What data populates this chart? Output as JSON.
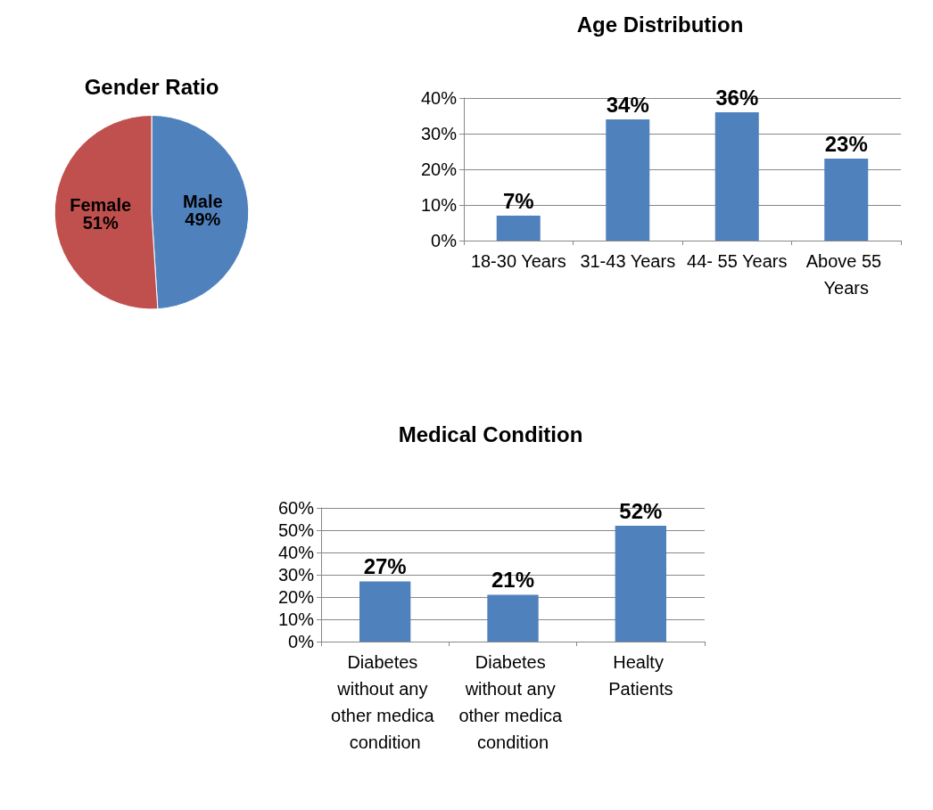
{
  "chart_data": [
    {
      "type": "pie",
      "title": "Gender Ratio",
      "categories": [
        "Male",
        "Female"
      ],
      "values": [
        49,
        51
      ],
      "colors": [
        "#4f81bd",
        "#c0504d"
      ],
      "value_labels": [
        "49%",
        "51%"
      ],
      "legend": false
    },
    {
      "type": "bar",
      "title": "Age Distribution",
      "categories": [
        "18-30 Years",
        "31-43 Years",
        "44- 55 Years",
        "Above 55 Years"
      ],
      "values": [
        7,
        34,
        36,
        23
      ],
      "color": "#4f81bd",
      "value_labels": [
        "7%",
        "34%",
        "36%",
        "23%"
      ],
      "ylim": [
        0,
        40
      ],
      "yticks": [
        {
          "value": 0,
          "label": "0%"
        },
        {
          "value": 10,
          "label": "10%"
        },
        {
          "value": 20,
          "label": "20%"
        },
        {
          "value": 30,
          "label": "30%"
        },
        {
          "value": 40,
          "label": "40%"
        }
      ],
      "grid": "y",
      "legend": false
    },
    {
      "type": "bar",
      "title": "Medical Condition",
      "categories": [
        "Diabetes without any other medica condition",
        "Diabetes without any other medica condition",
        "Healty Patients"
      ],
      "values": [
        27,
        21,
        52
      ],
      "color": "#4f81bd",
      "value_labels": [
        "27%",
        "21%",
        "52%"
      ],
      "ylim": [
        0,
        60
      ],
      "yticks": [
        {
          "value": 0,
          "label": "0%"
        },
        {
          "value": 10,
          "label": "10%"
        },
        {
          "value": 20,
          "label": "20%"
        },
        {
          "value": 30,
          "label": "30%"
        },
        {
          "value": 40,
          "label": "40%"
        },
        {
          "value": 50,
          "label": "50%"
        },
        {
          "value": 60,
          "label": "60%"
        }
      ],
      "grid": "y",
      "legend": false
    }
  ]
}
